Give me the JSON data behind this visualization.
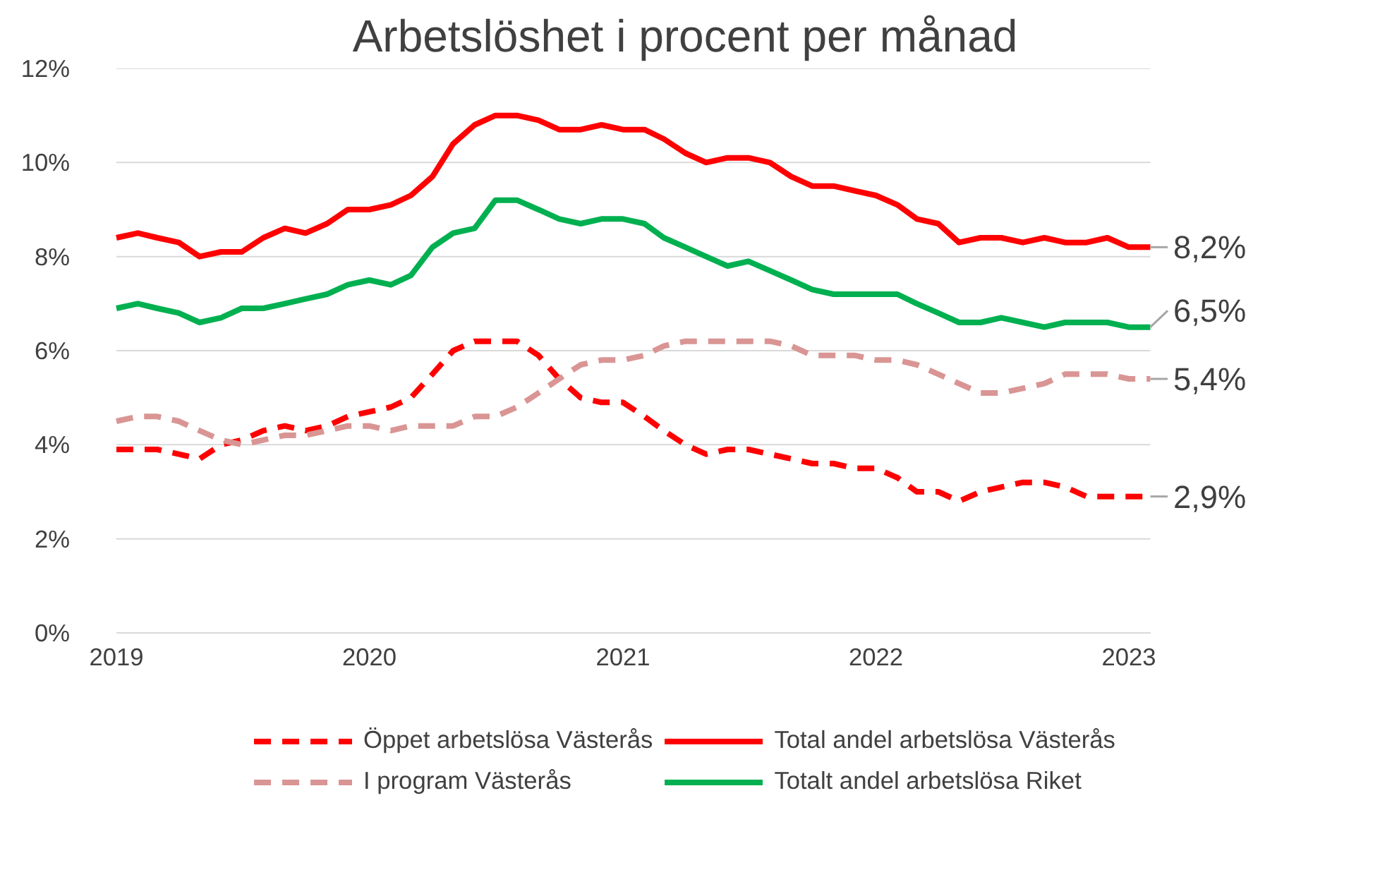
{
  "chart_data": {
    "type": "line",
    "title": "Arbetslöshet i procent per månad",
    "x": [
      "2019-01",
      "2019-02",
      "2019-03",
      "2019-04",
      "2019-05",
      "2019-06",
      "2019-07",
      "2019-08",
      "2019-09",
      "2019-10",
      "2019-11",
      "2019-12",
      "2020-01",
      "2020-02",
      "2020-03",
      "2020-04",
      "2020-05",
      "2020-06",
      "2020-07",
      "2020-08",
      "2020-09",
      "2020-10",
      "2020-11",
      "2020-12",
      "2021-01",
      "2021-02",
      "2021-03",
      "2021-04",
      "2021-05",
      "2021-06",
      "2021-07",
      "2021-08",
      "2021-09",
      "2021-10",
      "2021-11",
      "2021-12",
      "2022-01",
      "2022-02",
      "2022-03",
      "2022-04",
      "2022-05",
      "2022-06",
      "2022-07",
      "2022-08",
      "2022-09",
      "2022-10",
      "2022-11",
      "2022-12",
      "2023-01",
      "2023-02"
    ],
    "series": [
      {
        "name": "Öppet arbetslösa Västerås",
        "color": "#ff0000",
        "line_style": "dashed",
        "values": [
          3.9,
          3.9,
          3.9,
          3.8,
          3.7,
          4.0,
          4.1,
          4.3,
          4.4,
          4.3,
          4.4,
          4.6,
          4.7,
          4.8,
          5.0,
          5.5,
          6.0,
          6.2,
          6.2,
          6.2,
          5.9,
          5.4,
          5.0,
          4.9,
          4.9,
          4.6,
          4.3,
          4.0,
          3.8,
          3.9,
          3.9,
          3.8,
          3.7,
          3.6,
          3.6,
          3.5,
          3.5,
          3.3,
          3.0,
          3.0,
          2.8,
          3.0,
          3.1,
          3.2,
          3.2,
          3.1,
          2.9,
          2.9,
          2.9,
          2.9
        ]
      },
      {
        "name": "I program Västerås",
        "color": "#d99594",
        "line_style": "dashed",
        "values": [
          4.5,
          4.6,
          4.6,
          4.5,
          4.3,
          4.1,
          4.0,
          4.1,
          4.2,
          4.2,
          4.3,
          4.4,
          4.4,
          4.3,
          4.4,
          4.4,
          4.4,
          4.6,
          4.6,
          4.8,
          5.1,
          5.4,
          5.7,
          5.8,
          5.8,
          5.9,
          6.1,
          6.2,
          6.2,
          6.2,
          6.2,
          6.2,
          6.1,
          5.9,
          5.9,
          5.9,
          5.8,
          5.8,
          5.7,
          5.5,
          5.3,
          5.1,
          5.1,
          5.2,
          5.3,
          5.5,
          5.5,
          5.5,
          5.4,
          5.4
        ]
      },
      {
        "name": "Total andel arbetslösa Västerås",
        "color": "#ff0000",
        "line_style": "solid",
        "values": [
          8.4,
          8.5,
          8.4,
          8.3,
          8.0,
          8.1,
          8.1,
          8.4,
          8.6,
          8.5,
          8.7,
          9.0,
          9.0,
          9.1,
          9.3,
          9.7,
          10.4,
          10.8,
          11.0,
          11.0,
          10.9,
          10.7,
          10.7,
          10.8,
          10.7,
          10.7,
          10.5,
          10.2,
          10.0,
          10.1,
          10.1,
          10.0,
          9.7,
          9.5,
          9.5,
          9.4,
          9.3,
          9.1,
          8.8,
          8.7,
          8.3,
          8.4,
          8.4,
          8.3,
          8.4,
          8.3,
          8.3,
          8.4,
          8.2,
          8.2
        ]
      },
      {
        "name": "Totalt andel arbetslösa Riket",
        "color": "#00b050",
        "line_style": "solid",
        "values": [
          6.9,
          7.0,
          6.9,
          6.8,
          6.6,
          6.7,
          6.9,
          6.9,
          7.0,
          7.1,
          7.2,
          7.4,
          7.5,
          7.4,
          7.6,
          8.2,
          8.5,
          8.6,
          9.2,
          9.2,
          9.0,
          8.8,
          8.7,
          8.8,
          8.8,
          8.7,
          8.4,
          8.2,
          8.0,
          7.8,
          7.9,
          7.7,
          7.5,
          7.3,
          7.2,
          7.2,
          7.2,
          7.2,
          7.0,
          6.8,
          6.6,
          6.6,
          6.7,
          6.6,
          6.5,
          6.6,
          6.6,
          6.6,
          6.5,
          6.5
        ]
      }
    ],
    "xlim": [
      "2019-01",
      "2023-02"
    ],
    "xticks": [
      {
        "value": "2019-01",
        "label": "2019"
      },
      {
        "value": "2020-01",
        "label": "2020"
      },
      {
        "value": "2021-01",
        "label": "2021"
      },
      {
        "value": "2022-01",
        "label": "2022"
      },
      {
        "value": "2023-01",
        "label": "2023"
      }
    ],
    "ylim": [
      0,
      12
    ],
    "yticks": [
      {
        "value": 0,
        "label": "0%"
      },
      {
        "value": 2,
        "label": "2%"
      },
      {
        "value": 4,
        "label": "4%"
      },
      {
        "value": 6,
        "label": "6%"
      },
      {
        "value": 8,
        "label": "8%"
      },
      {
        "value": 10,
        "label": "10%"
      },
      {
        "value": 12,
        "label": "12%"
      }
    ],
    "grid": "y",
    "legend": "bottom",
    "marker": "none",
    "annotations": [
      {
        "text": "8,2%",
        "x": "2023-02",
        "y": 8.2
      },
      {
        "text": "6,5%",
        "x": "2023-02",
        "y": 6.5
      },
      {
        "text": "5,4%",
        "x": "2023-02",
        "y": 5.4
      },
      {
        "text": "2,9%",
        "x": "2023-02",
        "y": 2.9
      }
    ]
  }
}
